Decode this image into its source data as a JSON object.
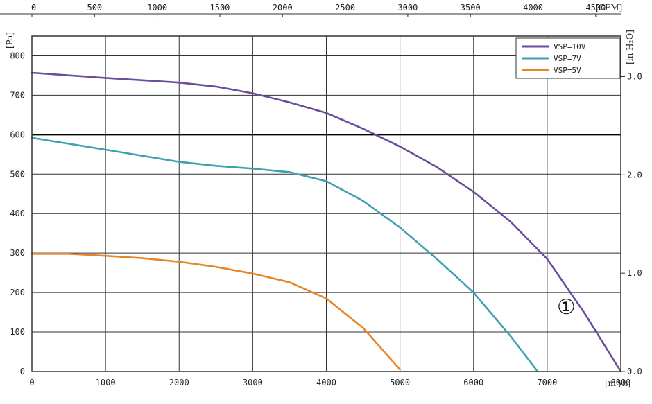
{
  "chart_data": {
    "type": "line",
    "title": "",
    "x_bottom": {
      "unit": "[m³/h]",
      "lim": [
        0,
        8000
      ],
      "ticks": [
        0,
        1000,
        2000,
        3000,
        4000,
        5000,
        6000,
        7000,
        8000
      ]
    },
    "x_top": {
      "unit": "[CFM]",
      "lim": [
        0,
        4700
      ],
      "ticks": [
        0,
        500,
        1000,
        1500,
        2000,
        2500,
        3000,
        3500,
        4000,
        4500
      ]
    },
    "y_left": {
      "unit": "[Pa]",
      "lim": [
        0,
        850
      ],
      "ticks": [
        0,
        100,
        200,
        300,
        400,
        500,
        600,
        700,
        800
      ]
    },
    "y_right": {
      "unit": "[in H₂O]",
      "ticks": [
        0.0,
        1.0,
        2.0,
        3.0
      ],
      "tick_labels": [
        "0.0",
        "1.0",
        "2.0",
        "3.0"
      ]
    },
    "grid": true,
    "reference_line": {
      "y": 600
    },
    "legend_position": "top-right",
    "annotation": "①",
    "series": [
      {
        "name": "VSP=10V",
        "color": "#6a4c9c",
        "x": [
          0,
          1000,
          2000,
          2500,
          3000,
          3500,
          4000,
          4500,
          5000,
          5500,
          6000,
          6500,
          7000,
          7500,
          8000
        ],
        "y": [
          757,
          744,
          732,
          722,
          705,
          682,
          655,
          615,
          570,
          518,
          455,
          380,
          285,
          150,
          0
        ]
      },
      {
        "name": "VSP=7V",
        "color": "#3fa0b0",
        "x": [
          0,
          1000,
          2000,
          2500,
          3000,
          3500,
          4000,
          4500,
          5000,
          5500,
          6000,
          6500,
          6870
        ],
        "y": [
          592,
          562,
          531,
          521,
          514,
          505,
          482,
          432,
          365,
          285,
          200,
          90,
          0
        ]
      },
      {
        "name": "VSP=5V",
        "color": "#e8842a",
        "x": [
          0,
          500,
          1000,
          1500,
          2000,
          2500,
          3000,
          3500,
          4000,
          4500,
          5000
        ],
        "y": [
          298,
          298,
          293,
          287,
          278,
          265,
          248,
          226,
          185,
          110,
          5
        ]
      }
    ]
  }
}
